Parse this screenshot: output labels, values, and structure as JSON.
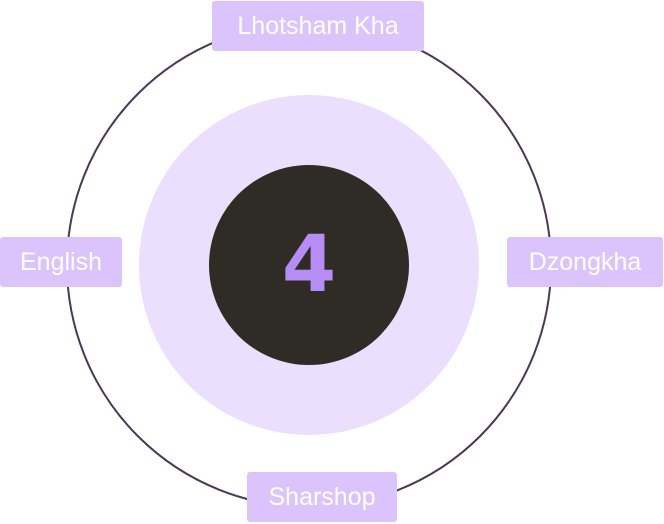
{
  "center": {
    "value": "4"
  },
  "labels": {
    "top": "Lhotsham Kha",
    "left": "English",
    "right": "Dzongkha",
    "bottom": "Sharshop"
  },
  "colors": {
    "outer_ring_stroke": "#4b3858",
    "middle_disc_fill": "#ecdffd",
    "inner_disc_fill": "#2f2c26",
    "center_text": "#b68cf5",
    "label_fill": "#dbc4fb",
    "label_text": "#ffffff"
  }
}
